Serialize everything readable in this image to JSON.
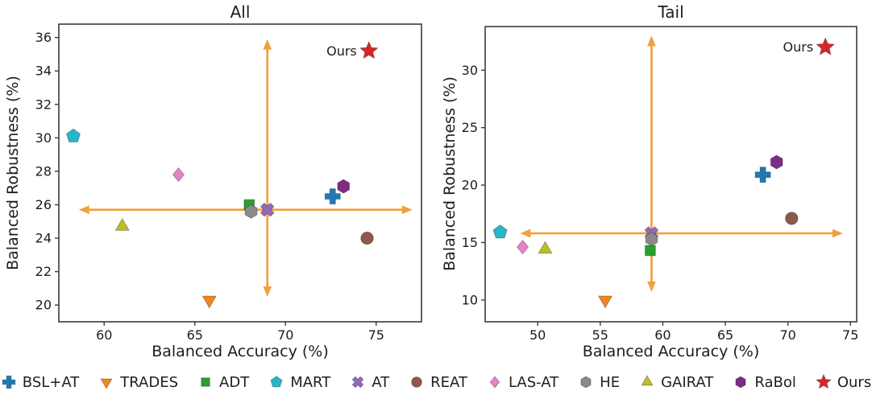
{
  "figure": {
    "type": "scatter-comparison",
    "panels": 2
  },
  "legend": {
    "items": [
      {
        "label": "BSL+AT",
        "marker": "plus",
        "color": "#2079b4"
      },
      {
        "label": "TRADES",
        "marker": "triangle-down",
        "color": "#f28522"
      },
      {
        "label": "ADT",
        "marker": "square",
        "color": "#2ca02c"
      },
      {
        "label": "MART",
        "marker": "pentagon",
        "color": "#27b6c9"
      },
      {
        "label": "AT",
        "marker": "x",
        "color": "#9467bd"
      },
      {
        "label": "REAT",
        "marker": "circle",
        "color": "#8b5a4b"
      },
      {
        "label": "LAS-AT",
        "marker": "diamond",
        "color": "#e583cb"
      },
      {
        "label": "HE",
        "marker": "hexagon",
        "color": "#8a8a8a"
      },
      {
        "label": "GAIRAT",
        "marker": "triangle-up",
        "color": "#bcbd2b"
      },
      {
        "label": "RaBol",
        "marker": "hexagon",
        "color": "#7e2c86"
      },
      {
        "label": "Ours",
        "marker": "star",
        "color": "#d62728"
      }
    ]
  },
  "chart_data": [
    {
      "type": "scatter",
      "title": "All",
      "xlabel": "Balanced Accuracy (%)",
      "ylabel": "Balanced Robustness (%)",
      "xlim": [
        57.5,
        77.5
      ],
      "ylim": [
        19.0,
        36.8
      ],
      "xticks": [
        60,
        65,
        70,
        75
      ],
      "yticks": [
        20,
        22,
        24,
        26,
        28,
        30,
        32,
        34,
        36
      ],
      "grid": false,
      "points": [
        {
          "method": "BSL+AT",
          "x": 72.6,
          "y": 26.5
        },
        {
          "method": "TRADES",
          "x": 65.8,
          "y": 20.3
        },
        {
          "method": "ADT",
          "x": 68.0,
          "y": 26.0
        },
        {
          "method": "MART",
          "x": 58.3,
          "y": 30.1
        },
        {
          "method": "AT",
          "x": 69.0,
          "y": 25.7
        },
        {
          "method": "REAT",
          "x": 74.5,
          "y": 24.0
        },
        {
          "method": "LAS-AT",
          "x": 64.1,
          "y": 27.8
        },
        {
          "method": "HE",
          "x": 68.1,
          "y": 25.6
        },
        {
          "method": "GAIRAT",
          "x": 61.0,
          "y": 24.7
        },
        {
          "method": "RaBol",
          "x": 73.2,
          "y": 27.1
        },
        {
          "method": "Ours",
          "x": 74.6,
          "y": 35.2
        }
      ],
      "crosshair": {
        "center_x": 69.0,
        "center_y": 25.7,
        "x_span": [
          58.6,
          77.0
        ],
        "y_span": [
          20.5,
          35.9
        ],
        "color": "#f0a13c"
      },
      "annotation": {
        "text": "Ours",
        "x": 74.6,
        "y": 35.2
      }
    },
    {
      "type": "scatter",
      "title": "Tail",
      "xlabel": "Balanced Accuracy (%)",
      "ylabel": "Balanced Robustness (%)",
      "xlim": [
        45.8,
        75.5
      ],
      "ylim": [
        8.1,
        33.8
      ],
      "xticks": [
        50,
        55,
        60,
        65,
        70,
        75
      ],
      "yticks": [
        10,
        15,
        20,
        25,
        30
      ],
      "grid": false,
      "points": [
        {
          "method": "BSL+AT",
          "x": 68.0,
          "y": 20.9
        },
        {
          "method": "TRADES",
          "x": 55.4,
          "y": 10.0
        },
        {
          "method": "ADT",
          "x": 59.0,
          "y": 14.3
        },
        {
          "method": "MART",
          "x": 47.0,
          "y": 15.9
        },
        {
          "method": "AT",
          "x": 59.1,
          "y": 15.8
        },
        {
          "method": "REAT",
          "x": 70.3,
          "y": 17.1
        },
        {
          "method": "LAS-AT",
          "x": 48.8,
          "y": 14.6
        },
        {
          "method": "HE",
          "x": 59.1,
          "y": 15.3
        },
        {
          "method": "GAIRAT",
          "x": 50.6,
          "y": 14.4
        },
        {
          "method": "RaBol",
          "x": 69.1,
          "y": 22.0
        },
        {
          "method": "Ours",
          "x": 73.0,
          "y": 32.0
        }
      ],
      "crosshair": {
        "center_x": 59.1,
        "center_y": 15.8,
        "x_span": [
          48.6,
          74.4
        ],
        "y_span": [
          10.7,
          33.0
        ],
        "color": "#f0a13c"
      },
      "annotation": {
        "text": "Ours",
        "x": 73.0,
        "y": 32.0
      }
    }
  ]
}
